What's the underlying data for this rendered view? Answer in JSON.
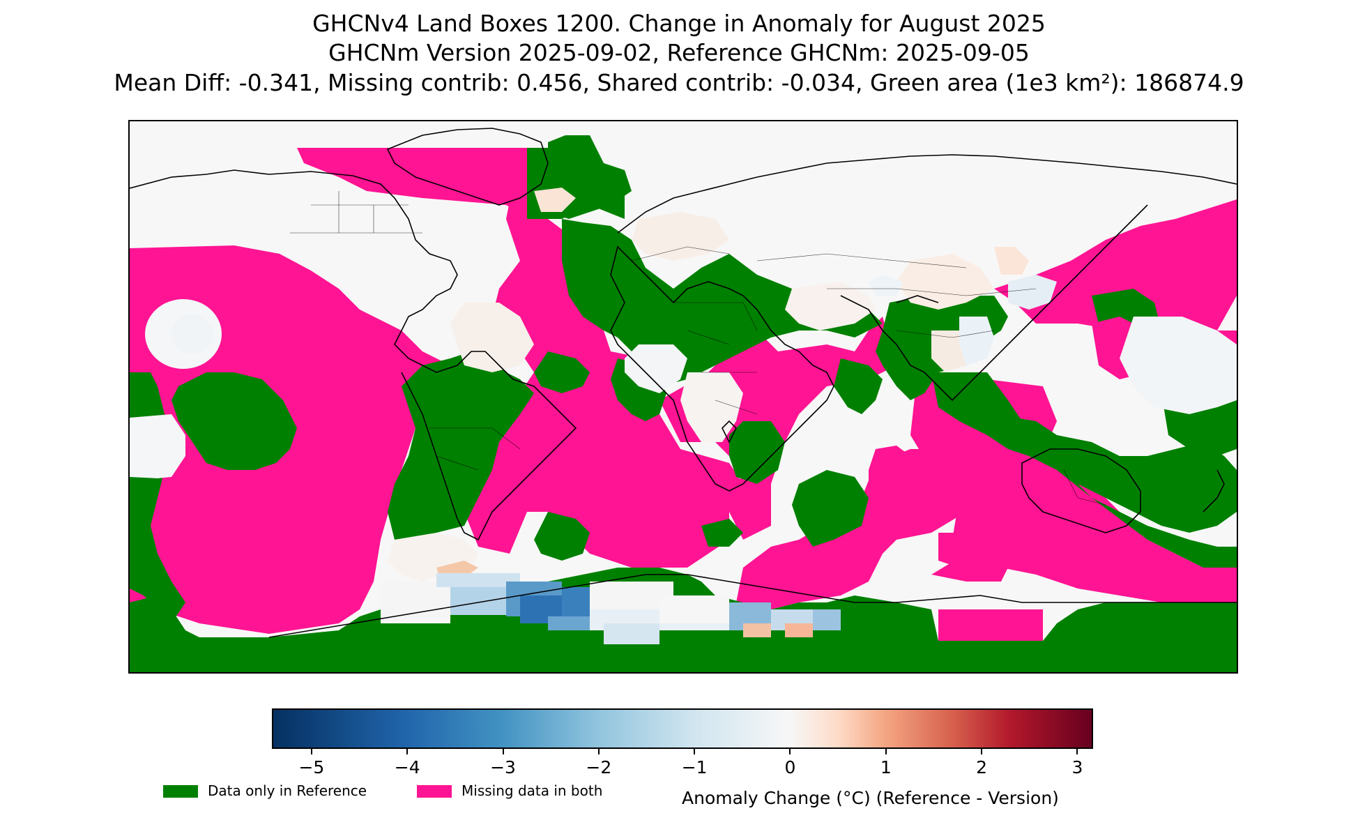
{
  "title": {
    "line1": "GHCNv4 Land Boxes 1200. Change in Anomaly for August 2025",
    "line2": "GHCNm Version 2025-09-02, Reference GHCNm: 2025-09-05",
    "line3": "Mean Diff: -0.341, Missing contrib: 0.456, Shared contrib: -0.034, Green area (1e3 km²): 186874.9"
  },
  "map": {
    "colors": {
      "data_only_in_reference": "#008000",
      "missing_in_both": "#ff1493",
      "neutral": "#f7f7f7",
      "coastline": "#000000"
    }
  },
  "colorbar": {
    "label": "Anomaly Change (°C) (Reference - Version)",
    "ticks": [
      "−5",
      "−4",
      "−3",
      "−2",
      "−1",
      "0",
      "1",
      "2",
      "3"
    ],
    "range": [
      -5.4,
      3.15
    ],
    "colormap": "RdBu_r"
  },
  "legend": [
    {
      "label": "Data only in Reference",
      "color": "#008000"
    },
    {
      "label": "Missing data in both",
      "color": "#ff1493"
    }
  ]
}
